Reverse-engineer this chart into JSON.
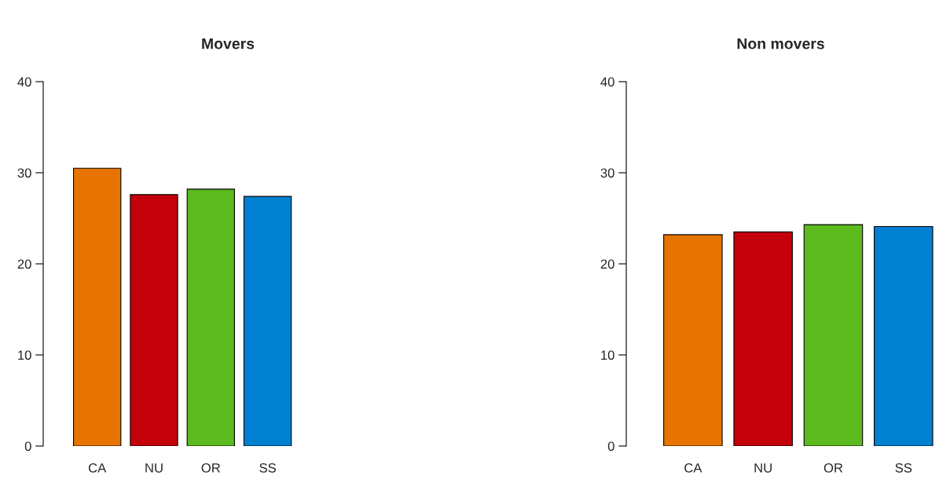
{
  "chart_data": [
    {
      "type": "bar",
      "title": "Movers",
      "categories": [
        "CA",
        "NU",
        "OR",
        "SS"
      ],
      "values": [
        30.5,
        27.6,
        28.2,
        27.4
      ],
      "colors": [
        "#e87400",
        "#c4000b",
        "#5dba1f",
        "#0080d0"
      ],
      "ylim": [
        0,
        40
      ],
      "yticks": [
        0,
        10,
        20,
        30,
        40
      ],
      "grid": false,
      "legend": false
    },
    {
      "type": "bar",
      "title": "Non movers",
      "categories": [
        "CA",
        "NU",
        "OR",
        "SS"
      ],
      "values": [
        23.2,
        23.5,
        24.3,
        24.1
      ],
      "colors": [
        "#e87400",
        "#c4000b",
        "#5dba1f",
        "#0080d0"
      ],
      "ylim": [
        0,
        40
      ],
      "yticks": [
        0,
        10,
        20,
        30,
        40
      ],
      "grid": false,
      "legend": false
    }
  ]
}
